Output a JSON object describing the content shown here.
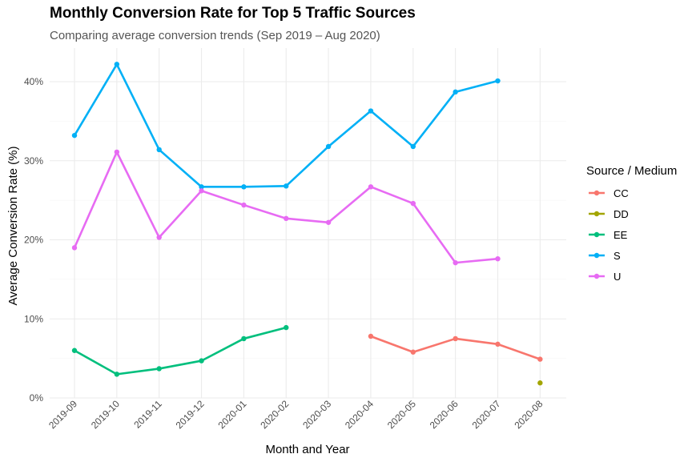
{
  "chart_data": {
    "type": "line",
    "title": "Monthly Conversion Rate for Top 5 Traffic Sources",
    "subtitle": "Comparing average conversion trends (Sep 2019 – Aug 2020)",
    "xlabel": "Month and Year",
    "ylabel": "Average Conversion Rate (%)",
    "categories": [
      "2019-09",
      "2019-10",
      "2019-11",
      "2019-12",
      "2020-01",
      "2020-02",
      "2020-03",
      "2020-04",
      "2020-05",
      "2020-06",
      "2020-07",
      "2020-08"
    ],
    "ylim": [
      0,
      44
    ],
    "yticks": [
      0,
      10,
      20,
      30,
      40
    ],
    "ytick_labels": [
      "0%",
      "10%",
      "20%",
      "30%",
      "40%"
    ],
    "grid": true,
    "legend_title": "Source / Medium",
    "legend_position": "right",
    "series": [
      {
        "name": "CC",
        "color": "#F8766D",
        "values": [
          null,
          null,
          null,
          null,
          null,
          null,
          null,
          7.8,
          5.8,
          7.5,
          6.8,
          4.9
        ]
      },
      {
        "name": "DD",
        "color": "#A3A500",
        "values": [
          null,
          null,
          null,
          null,
          null,
          null,
          null,
          null,
          null,
          null,
          null,
          1.9
        ]
      },
      {
        "name": "EE",
        "color": "#00BF7D",
        "values": [
          6.0,
          3.0,
          3.7,
          4.7,
          7.5,
          8.9,
          null,
          null,
          null,
          null,
          null,
          null
        ]
      },
      {
        "name": "S",
        "color": "#00B0F6",
        "values": [
          33.2,
          42.2,
          31.4,
          26.7,
          26.7,
          26.8,
          31.8,
          36.3,
          31.8,
          38.7,
          40.1,
          null
        ]
      },
      {
        "name": "U",
        "color": "#E76BF3",
        "values": [
          19.0,
          31.1,
          20.3,
          26.2,
          24.4,
          22.7,
          22.2,
          26.7,
          24.6,
          17.1,
          17.6,
          null
        ]
      }
    ]
  }
}
